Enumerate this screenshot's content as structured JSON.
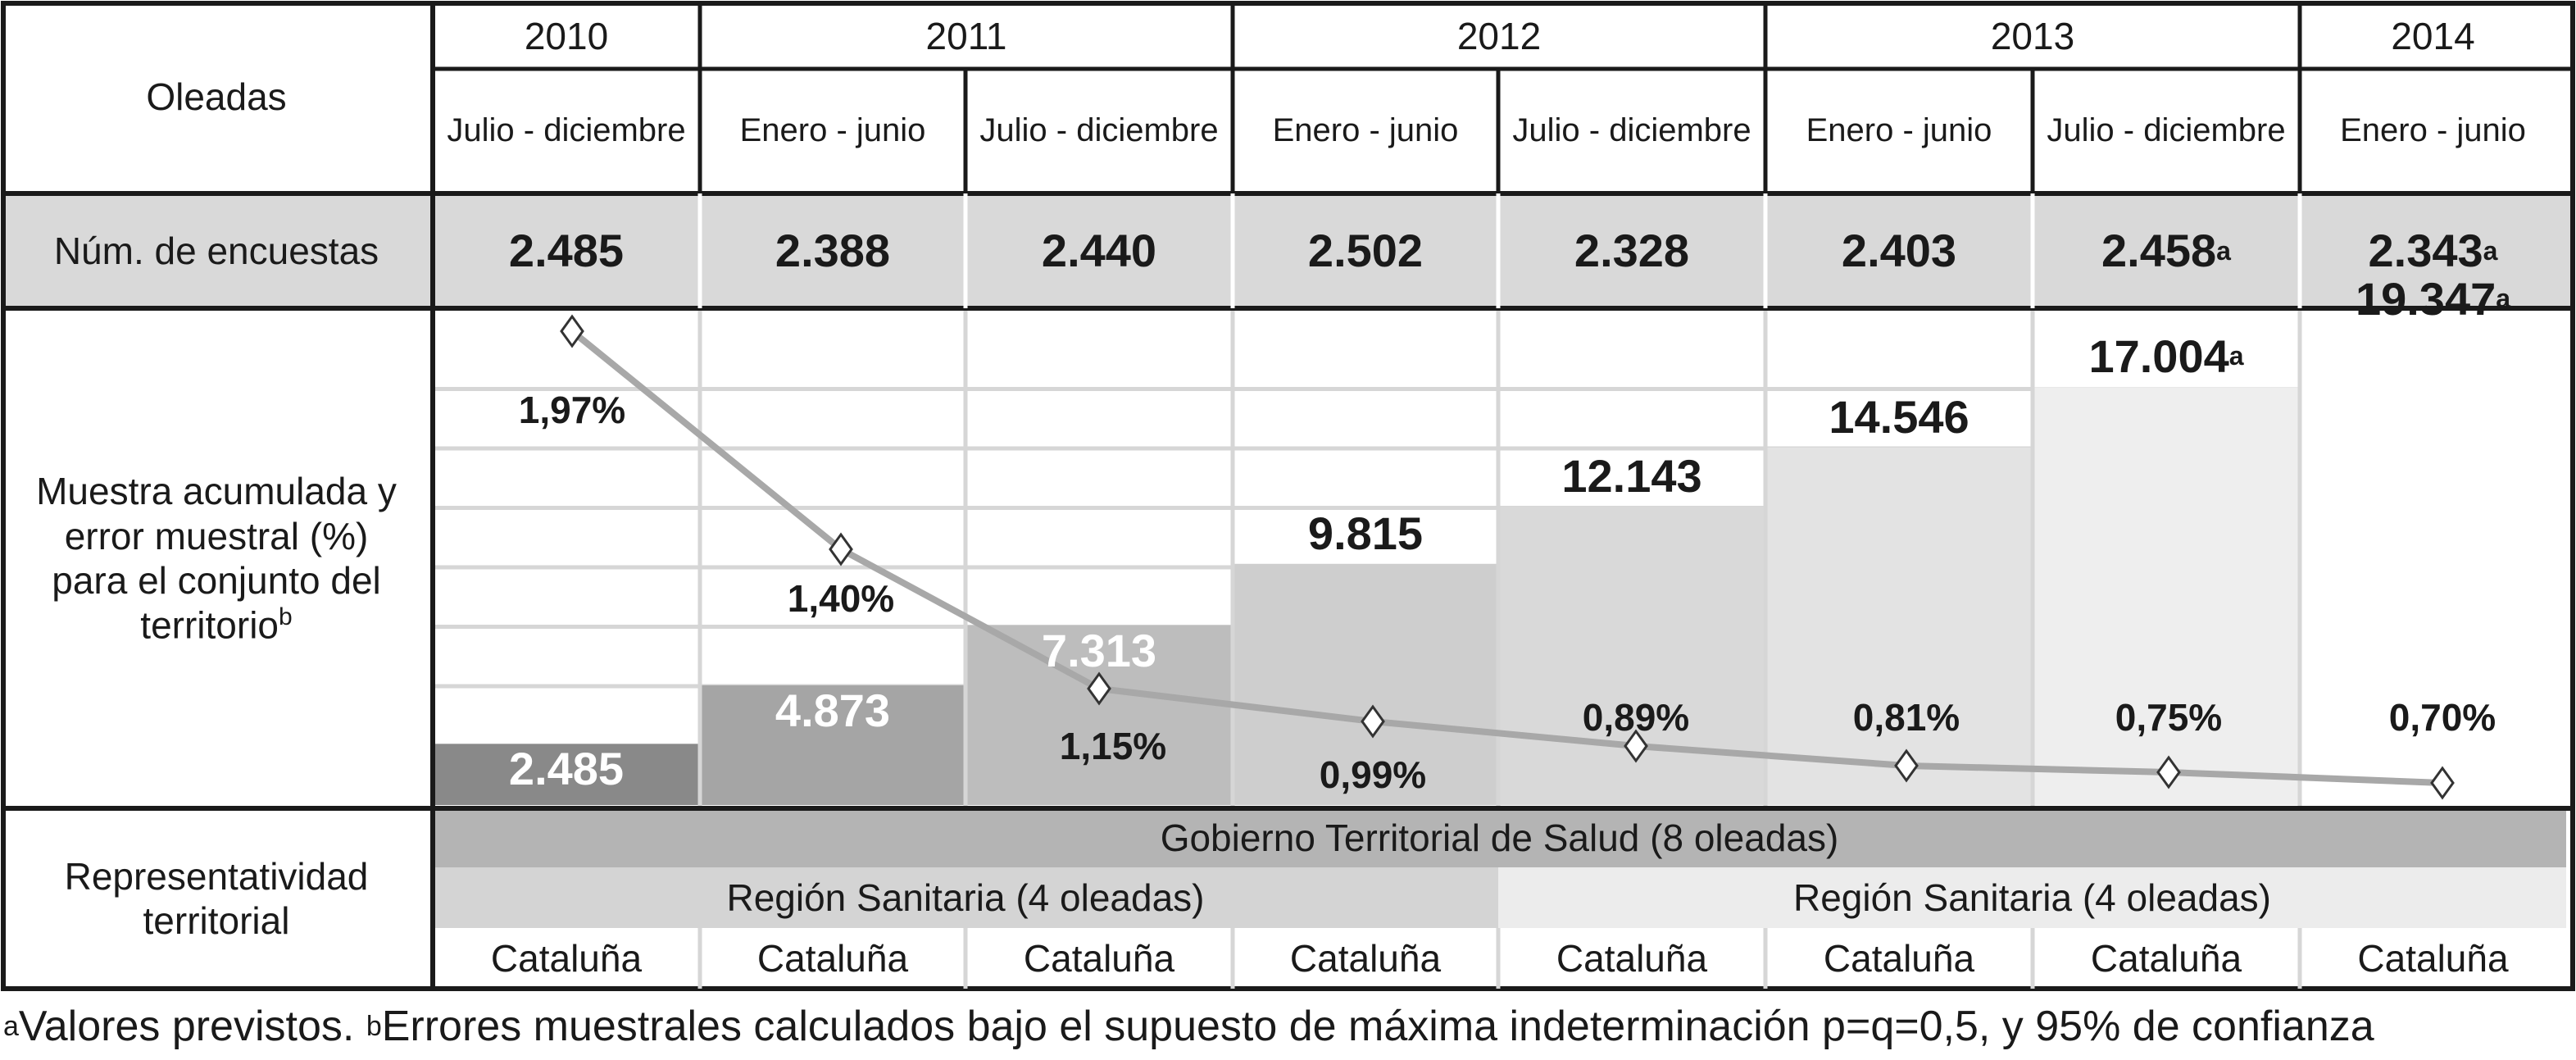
{
  "chart_data": {
    "type": "table",
    "row_headers": {
      "waves": "Oleadas",
      "surveys": "Núm. de encuestas",
      "cumulative": [
        "Muestra acumulada y",
        "error muestral (%)",
        "para el conjunto del",
        "territorio"
      ],
      "cumulative_sup": "b",
      "representativity": [
        "Representatividad",
        "territorial"
      ]
    },
    "years": [
      {
        "label": "2010",
        "span": 1
      },
      {
        "label": "2011",
        "span": 2
      },
      {
        "label": "2012",
        "span": 2
      },
      {
        "label": "2013",
        "span": 2
      },
      {
        "label": "2014",
        "span": 1
      }
    ],
    "periods": [
      "Julio - diciembre",
      "Enero - junio",
      "Julio - diciembre",
      "Enero - junio",
      "Julio - diciembre",
      "Enero - junio",
      "Julio - diciembre",
      "Enero - junio"
    ],
    "surveys": [
      {
        "value": "2.485",
        "sup": ""
      },
      {
        "value": "2.388",
        "sup": ""
      },
      {
        "value": "2.440",
        "sup": ""
      },
      {
        "value": "2.502",
        "sup": ""
      },
      {
        "value": "2.328",
        "sup": ""
      },
      {
        "value": "2.403",
        "sup": ""
      },
      {
        "value": "2.458",
        "sup": "a"
      },
      {
        "value": "2.343",
        "sup": "a"
      }
    ],
    "cumulative_sample": {
      "values": [
        2485,
        4873,
        7313,
        9815,
        12143,
        14546,
        17004,
        19347
      ],
      "labels": [
        "2.485",
        "4.873",
        "7.313",
        "9.815",
        "12.143",
        "14.546",
        "17.004",
        "19.347"
      ],
      "sups": [
        "",
        "",
        "",
        "",
        "",
        "",
        "a",
        "a"
      ],
      "colors": [
        "#898989",
        "#a5a5a5",
        "#bdbdbd",
        "#cecece",
        "#d9d9d9",
        "#e3e3e3",
        "#eeeeee",
        "#ffffff"
      ],
      "ylim": [
        0,
        19347
      ]
    },
    "sampling_error": {
      "values": [
        1.97,
        1.4,
        1.15,
        0.99,
        0.89,
        0.81,
        0.75,
        0.7
      ],
      "labels": [
        "1,97%",
        "1,40%",
        "1,15%",
        "0,99%",
        "0,89%",
        "0,81%",
        "0,75%",
        "0,70%"
      ],
      "line_color": "#a8a8a8"
    },
    "representativity": {
      "top_band": {
        "label": "Gobierno Territorial de Salud (8 oleadas)",
        "color": "#b4b4b4"
      },
      "mid_bands": [
        {
          "label": "Región Sanitaria (4 oleadas)",
          "color": "#d4d4d4"
        },
        {
          "label": "Región Sanitaria (4 oleadas)",
          "color": "#ececec"
        }
      ],
      "bottom": [
        "Cataluña",
        "Cataluña",
        "Cataluña",
        "Cataluña",
        "Cataluña",
        "Cataluña",
        "Cataluña",
        "Cataluña"
      ]
    },
    "footnote": {
      "a_mark": "a",
      "a_text": "Valores previstos.",
      "b_mark": "b",
      "b_text": "Errores muestrales calculados bajo el supuesto de máxima indeterminación p=q=0,5, y 95% de confianza"
    }
  }
}
